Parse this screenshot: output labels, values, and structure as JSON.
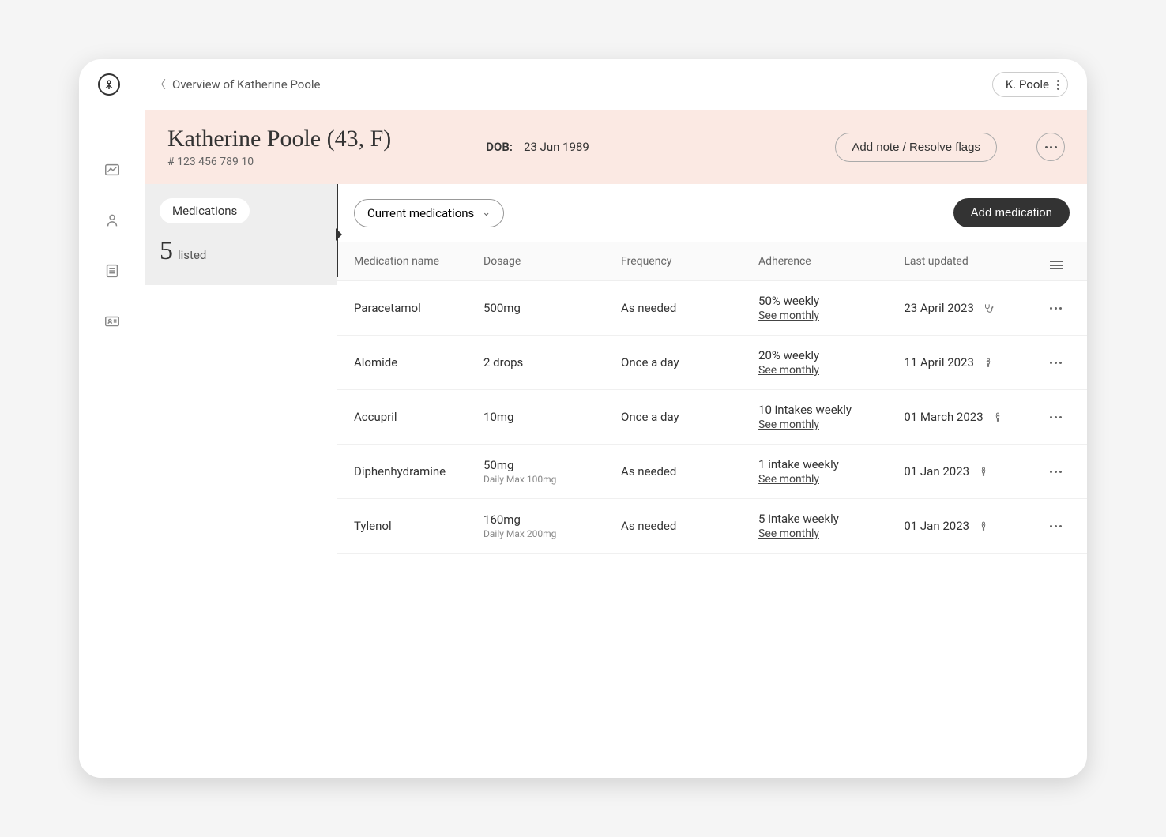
{
  "topbar": {
    "breadcrumb": "Overview of Katherine Poole",
    "user_label": "K. Poole"
  },
  "patient": {
    "display_name": "Katherine Poole (43,  F)",
    "id_line": "# 123 456 789 10",
    "dob_label": "DOB:",
    "dob_value": "23 Jun 1989",
    "action_label": "Add note / Resolve flags"
  },
  "left": {
    "chip": "Medications",
    "count": "5",
    "count_label": "listed"
  },
  "toolbar": {
    "dropdown_label": "Current medications",
    "add_button": "Add medication"
  },
  "table": {
    "columns": {
      "name": "Medication name",
      "dosage": "Dosage",
      "frequency": "Frequency",
      "adherence": "Adherence",
      "updated": "Last updated"
    },
    "see_monthly": "See monthly",
    "rows": [
      {
        "name": "Paracetamol",
        "dosage": "500mg",
        "dosage_sub": "",
        "frequency": "As needed",
        "adherence": "50% weekly",
        "updated": "23 April 2023",
        "icon": "stethoscope"
      },
      {
        "name": "Alomide",
        "dosage": "2 drops",
        "dosage_sub": "",
        "frequency": "Once a day",
        "adherence": "20% weekly",
        "updated": "11 April 2023",
        "icon": "person"
      },
      {
        "name": "Accupril",
        "dosage": "10mg",
        "dosage_sub": "",
        "frequency": "Once a day",
        "adherence": "10 intakes weekly",
        "updated": "01 March 2023",
        "icon": "person"
      },
      {
        "name": "Diphenhydramine",
        "dosage": "50mg",
        "dosage_sub": "Daily Max 100mg",
        "frequency": "As needed",
        "adherence": "1 intake weekly",
        "updated": "01 Jan 2023",
        "icon": "person"
      },
      {
        "name": "Tylenol",
        "dosage": "160mg",
        "dosage_sub": "Daily Max 200mg",
        "frequency": "As needed",
        "adherence": "5 intake weekly",
        "updated": "01 Jan 2023",
        "icon": "person"
      }
    ]
  },
  "colors": {
    "header_bg": "#fbe9e3",
    "primary_btn": "#333333",
    "panel_grey": "#eeeeee"
  }
}
